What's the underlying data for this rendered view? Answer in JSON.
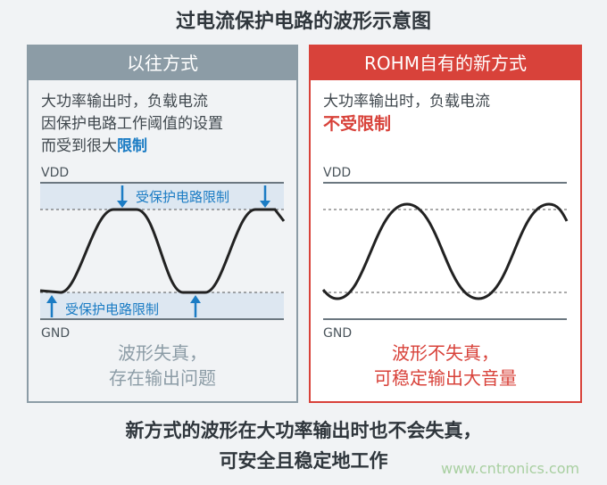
{
  "title": "过电流保护电路的波形示意图",
  "left": {
    "header": "以往方式",
    "desc": [
      "大功率输出时，负载电流",
      "因保护电路工作阈值的设置",
      "而受到很大"
    ],
    "desc_emph": "限制",
    "vdd": "VDD",
    "gnd": "GND",
    "limit_top": "受保护电路限制",
    "limit_bottom": "受保护电路限制",
    "caption": [
      "波形失真，",
      "存在输出问题"
    ]
  },
  "right": {
    "header": "ROHM自有的新方式",
    "desc": "大功率输出时，负载电流",
    "desc_emph": "不受限制",
    "vdd": "VDD",
    "gnd": "GND",
    "caption": [
      "波形不失真，",
      "可稳定输出大音量"
    ]
  },
  "footer": [
    "新方式的波形在大功率输出时也不会失真，",
    "可安全且稳定地工作"
  ],
  "watermark": "www.cntronics.com",
  "colors": {
    "old": "#8c9ca6",
    "new": "#d8423a",
    "accent": "#1b7cc4"
  }
}
